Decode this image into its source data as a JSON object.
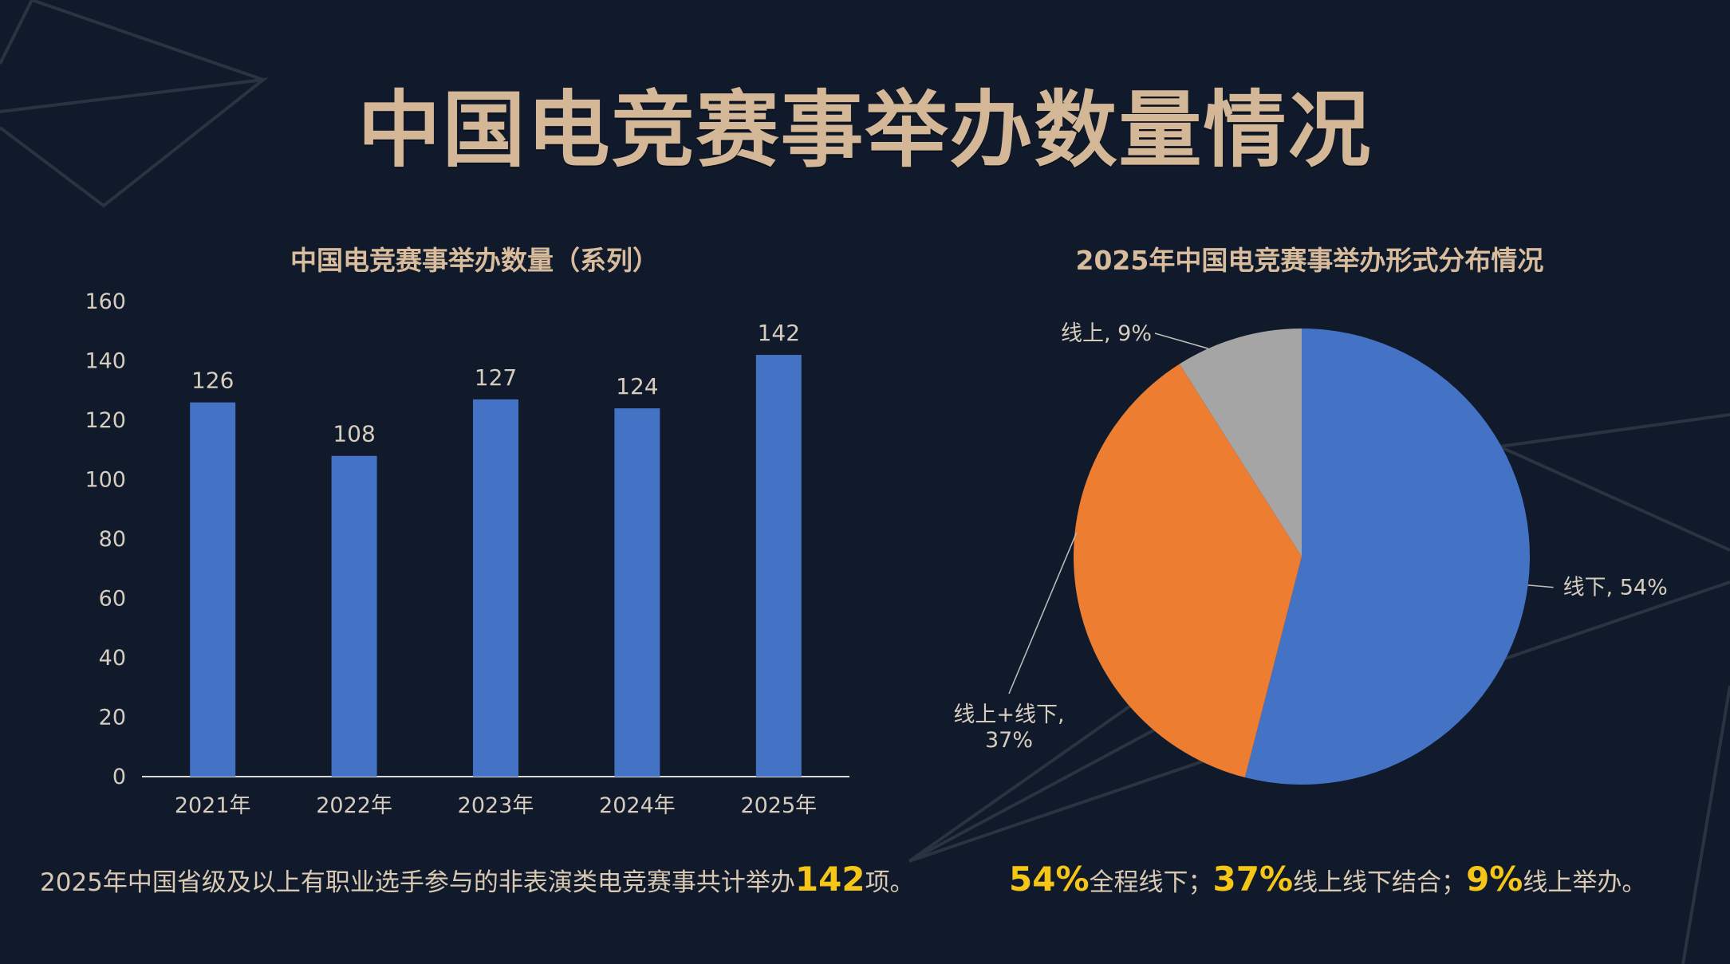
{
  "page": {
    "title": "中国电竞赛事举办数量情况"
  },
  "chart_data": [
    {
      "type": "bar",
      "title": "中国电竞赛事举办数量（系列）",
      "categories": [
        "2021年",
        "2022年",
        "2023年",
        "2024年",
        "2025年"
      ],
      "values": [
        126,
        108,
        127,
        124,
        142
      ],
      "ylim": [
        0,
        160
      ],
      "yticks": [
        0,
        20,
        40,
        60,
        80,
        100,
        120,
        140,
        160
      ],
      "color": "#4472c4",
      "data_labels": true,
      "grid": false
    },
    {
      "type": "pie",
      "title": "2025年中国电竞赛事举办形式分布情况",
      "slices": [
        {
          "label": "线下",
          "value": 54,
          "display": "线下, 54%",
          "color": "#4472c4"
        },
        {
          "label": "线上+线下",
          "value": 37,
          "display": "线上+线下, 37%",
          "color": "#ed7d31"
        },
        {
          "label": "线上",
          "value": 9,
          "display": "线上, 9%",
          "color": "#a5a5a5"
        }
      ]
    }
  ],
  "captions": {
    "left": {
      "before": "2025年中国省级及以上有职业选手参与的非表演类电竞赛事共计举办",
      "highlight": "142",
      "after": "项。"
    },
    "right": {
      "p1": "54%",
      "t1": "全程线下；",
      "p2": "37%",
      "t2": "线上线下结合；",
      "p3": "9%",
      "t3": "线上举办。"
    }
  }
}
